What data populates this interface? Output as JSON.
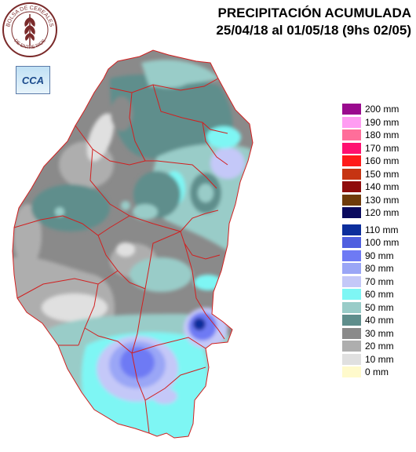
{
  "header": {
    "title_line1": "PRECIPITACIÓN ACUMULADA",
    "title_line2": "25/04/18 al  01/05/18 (9hs 02/05)"
  },
  "logos": {
    "seal_text_top": "BOLSA DE CEREALES",
    "seal_text_bottom": "DE ENTRE RIOS",
    "cca_text": "CCA"
  },
  "legend": {
    "items": [
      {
        "label": "200 mm",
        "color": "#9a0a8e"
      },
      {
        "label": "190 mm",
        "color": "#ff9cf2"
      },
      {
        "label": "180 mm",
        "color": "#ff6e9a"
      },
      {
        "label": "170 mm",
        "color": "#ff1070"
      },
      {
        "label": "160 mm",
        "color": "#ff1a1a"
      },
      {
        "label": "150 mm",
        "color": "#c63412"
      },
      {
        "label": "140 mm",
        "color": "#8f0c0c"
      },
      {
        "label": "130 mm",
        "color": "#6e3b0a"
      },
      {
        "label": "120 mm",
        "color": "#0a0a5e"
      },
      {
        "label": "110 mm",
        "color": "#0c2e9c"
      },
      {
        "label": "100 mm",
        "color": "#4f5fe0"
      },
      {
        "label": "90 mm",
        "color": "#6e7af4"
      },
      {
        "label": "80 mm",
        "color": "#9aa6f6"
      },
      {
        "label": "70 mm",
        "color": "#c4c8f8"
      },
      {
        "label": "60 mm",
        "color": "#7ef6f4"
      },
      {
        "label": "50 mm",
        "color": "#99ccc8"
      },
      {
        "label": "40 mm",
        "color": "#5f8e8c"
      },
      {
        "label": "30 mm",
        "color": "#8a8a8a"
      },
      {
        "label": "20 mm",
        "color": "#aeaeae"
      },
      {
        "label": "10 mm",
        "color": "#e0e0e0"
      },
      {
        "label": "0 mm",
        "color": "#fffacc"
      }
    ]
  }
}
